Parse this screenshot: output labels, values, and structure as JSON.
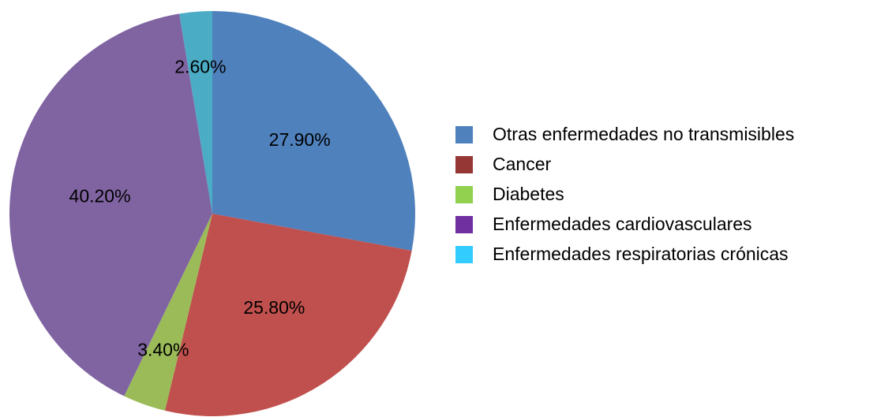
{
  "chart_data": {
    "type": "pie",
    "categories": [
      "Otras enfermedades no transmisibles",
      "Cancer",
      "Diabetes",
      "Enfermedades cardiovasculares",
      "Enfermedades respiratorias crónicas"
    ],
    "values": [
      27.9,
      25.8,
      3.4,
      40.2,
      2.6
    ],
    "value_labels": [
      "27.90%",
      "25.80%",
      "3.40%",
      "40.20%",
      "2.60%"
    ],
    "colors": [
      "#4f81bd",
      "#c0504d",
      "#9bbb59",
      "#8064a2",
      "#4bacc6"
    ],
    "legend_colors": [
      "#4f81bd",
      "#953735",
      "#92d050",
      "#7030a0",
      "#33ccff"
    ],
    "legend": "right"
  }
}
